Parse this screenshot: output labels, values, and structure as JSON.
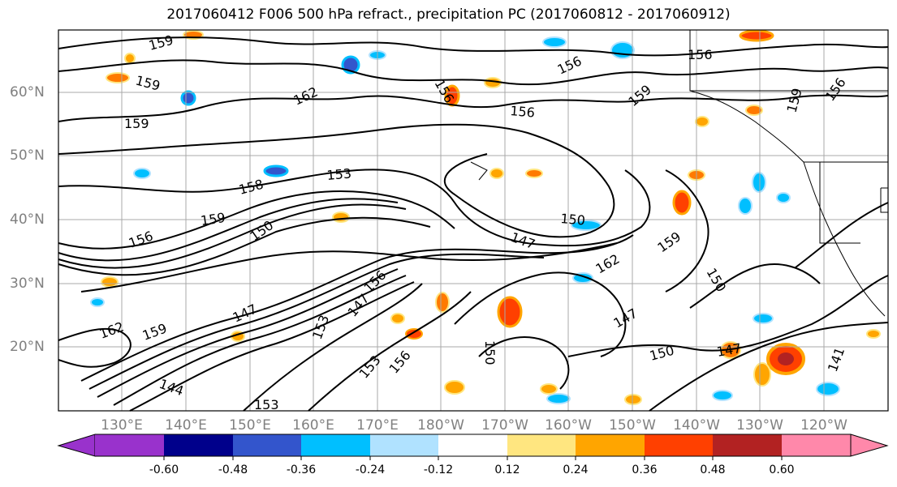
{
  "title": "2017060412 F006 500 hPa refract., precipitation PC (2017060812 - 2017060912)",
  "lat_labels": [
    "60°N",
    "50°N",
    "40°N",
    "30°N",
    "20°N"
  ],
  "lon_labels": [
    "130°E",
    "140°E",
    "150°E",
    "160°E",
    "170°E",
    "180°W",
    "170°W",
    "160°W",
    "150°W",
    "140°W",
    "130°W",
    "120°W"
  ],
  "contour_labels": [
    "159",
    "159",
    "162",
    "156",
    "156",
    "156",
    "159",
    "156",
    "156",
    "159",
    "153",
    "158",
    "159",
    "159",
    "150",
    "156",
    "150",
    "147",
    "162",
    "159",
    "150",
    "147",
    "156",
    "147",
    "159",
    "147",
    "150",
    "153",
    "153",
    "156",
    "150",
    "147",
    "144",
    "162",
    "153",
    "141"
  ],
  "colorbar": {
    "ticks": [
      "-0.60",
      "-0.48",
      "-0.36",
      "-0.24",
      "-0.12",
      "0.12",
      "0.24",
      "0.36",
      "0.48",
      "0.60"
    ],
    "colors": [
      "#9932cc",
      "#00008b",
      "#3355cc",
      "#00bfff",
      "#b0e2ff",
      "#ffffff",
      "#ffe680",
      "#ffa500",
      "#ff4000",
      "#b22222",
      "#ff88aa"
    ]
  },
  "fill_colors": {
    "neg_light": "#b0e2ff",
    "neg_mid": "#00bfff",
    "neg_dark": "#3355cc",
    "pos_light": "#ffe680",
    "pos_mid": "#ffa500",
    "pos_dark": "#ff4000",
    "pos_deep": "#b22222"
  }
}
